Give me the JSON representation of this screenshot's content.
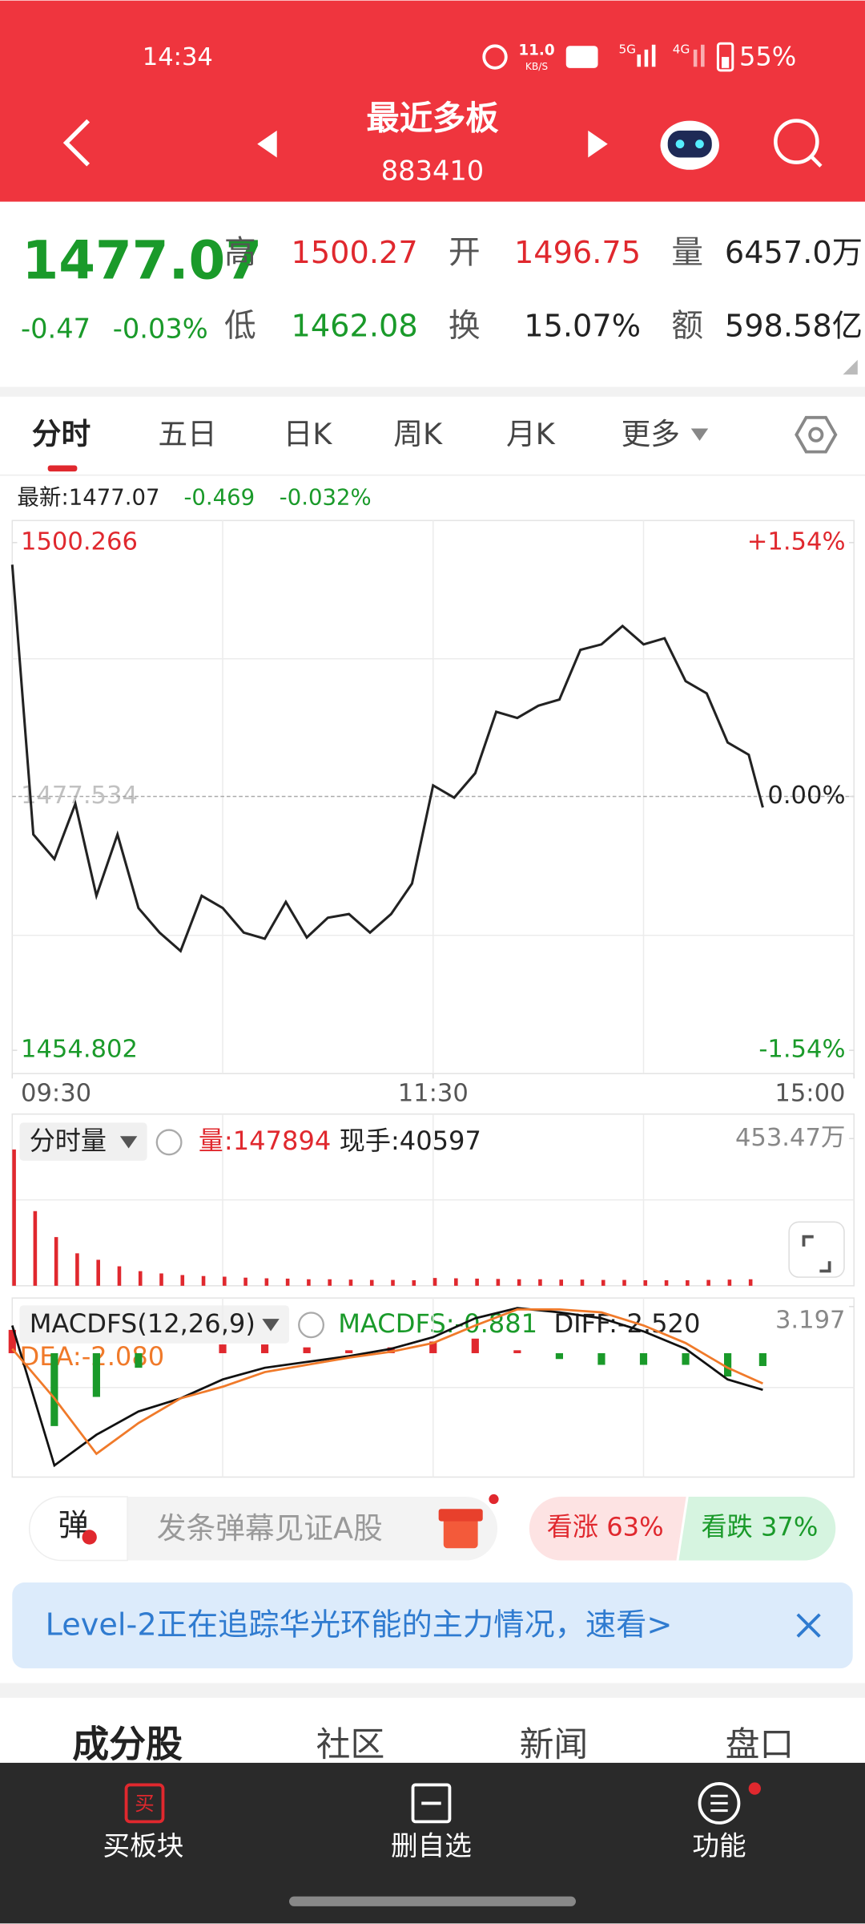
{
  "status_bar": {
    "time": "14:34",
    "net_speed": "11.0",
    "net_unit": "KB/S",
    "network": "5G",
    "network2": "4G",
    "battery": "55%"
  },
  "header": {
    "title": "最近多板",
    "code": "883410"
  },
  "quote": {
    "price": "1477.07",
    "change": "-0.47",
    "change_pct": "-0.03%",
    "stats": [
      {
        "label": "高",
        "value": "1500.27"
      },
      {
        "label": "开",
        "value": "1496.75"
      },
      {
        "label": "量",
        "value": "6457.0万"
      },
      {
        "label": "低",
        "value": "1462.08"
      },
      {
        "label": "换",
        "value": "15.07%"
      },
      {
        "label": "额",
        "value": "598.58亿"
      }
    ]
  },
  "tabs": [
    "分时",
    "五日",
    "日K",
    "周K",
    "月K",
    "更多"
  ],
  "intraday_info": {
    "latest": "最新:1477.07",
    "change": "-0.469",
    "change_pct": "-0.032%"
  },
  "volume_info": {
    "selector": "分时量",
    "volume": "量:147894",
    "hand": "现手:40597"
  },
  "macd_info": {
    "selector": "MACDFS(12,26,9)",
    "macd": "MACDFS:-0.881",
    "diff": "DIFF:-2.520",
    "dea": "DEA:-2.080"
  },
  "comment_bar": {
    "button": "弹",
    "placeholder": "发条弹幕见证A股",
    "bull": "看涨 63%",
    "bear": "看跌 37%"
  },
  "banner": {
    "text": "Level-2正在追踪华光环能的主力情况，速看>"
  },
  "section_tabs": [
    "成分股",
    "社区",
    "新闻",
    "盘口"
  ],
  "bottom_nav": [
    "买板块",
    "删自选",
    "功能"
  ],
  "chart_data": [
    {
      "type": "line",
      "x": [
        0,
        6,
        12,
        18,
        24,
        30,
        36,
        42,
        48,
        54,
        60,
        66,
        72,
        78,
        84,
        90,
        96,
        102,
        108,
        114,
        120,
        126,
        132,
        138,
        144,
        150,
        156,
        162,
        168,
        174,
        180,
        186,
        192,
        198,
        204,
        210,
        214
      ],
      "series": [
        {
          "color": "#222222",
          "values": [
            1498.29,
            1474.13,
            1471.93,
            1476.88,
            1468.64,
            1474.13,
            1467.54,
            1465.34,
            1463.7,
            1468.64,
            1467.54,
            1465.34,
            1464.79,
            1468.09,
            1464.9,
            1466.67,
            1467,
            1465.34,
            1467,
            1469.74,
            1478.52,
            1477.42,
            1479.62,
            1485.11,
            1484.56,
            1485.66,
            1486.21,
            1490.66,
            1491.15,
            1492.8,
            1491.15,
            1491.7,
            1487.86,
            1486.76,
            1482.37,
            1481.27,
            1476.55
          ]
        }
      ],
      "xlim": [
        0,
        240
      ],
      "xticks": [
        {
          "value": 0,
          "label": "09:30"
        },
        {
          "value": 120,
          "label": "11:30"
        },
        {
          "value": 240,
          "label": "15:00"
        }
      ],
      "ylim": [
        1454.802,
        1500.266
      ],
      "yticks": [
        1454.802,
        1477.534,
        1500.266
      ],
      "y2lim": [
        -1.54,
        1.54
      ],
      "y2ticks": [
        {
          "value": -1.54,
          "label": "-1.54%"
        },
        {
          "value": 0,
          "label": "0.00%"
        },
        {
          "value": 1.54,
          "label": "+1.54%"
        }
      ]
    },
    {
      "type": "bar",
      "x": [
        0,
        6,
        12,
        18,
        24,
        30,
        36,
        42,
        48,
        54,
        60,
        66,
        72,
        78,
        84,
        90,
        96,
        102,
        108,
        114,
        120,
        126,
        132,
        138,
        144,
        150,
        156,
        162,
        168,
        174,
        180,
        186,
        192,
        198,
        204,
        210
      ],
      "series": [
        {
          "color": "#e0282e",
          "values": [
            4200000,
            2300000,
            1500000,
            1000000,
            800000,
            600000,
            450000,
            380000,
            330000,
            300000,
            280000,
            250000,
            230000,
            220000,
            200000,
            200000,
            190000,
            180000,
            180000,
            170000,
            240000,
            230000,
            220000,
            210000,
            200000,
            200000,
            190000,
            190000,
            180000,
            180000,
            170000,
            170000,
            170000,
            180000,
            190000,
            200000
          ]
        }
      ],
      "xlim": [
        0,
        240
      ],
      "ylim": [
        0,
        4534700
      ],
      "yticks": [
        {
          "value": 4534700,
          "label": "453.47万"
        }
      ]
    },
    {
      "type": "macd",
      "x": [
        0,
        12,
        24,
        36,
        48,
        60,
        72,
        84,
        96,
        108,
        120,
        132,
        144,
        156,
        168,
        180,
        192,
        204,
        214
      ],
      "histogram": {
        "up_color": "#e0282e",
        "down_color": "#1a9a2a",
        "values": [
          1.6,
          -5.0,
          -3.0,
          -1.0,
          0,
          0.6,
          0.6,
          0.4,
          0.2,
          0.4,
          0.8,
          1.0,
          0.2,
          -0.4,
          -0.8,
          -0.8,
          -0.8,
          -1.6,
          -0.881
        ]
      },
      "diff": {
        "color": "#111111",
        "values": [
          1.9,
          -7.7,
          -5.6,
          -4.0,
          -3.1,
          -1.8,
          -1.0,
          -0.6,
          -0.2,
          0.3,
          1.1,
          2.4,
          3.1,
          2.8,
          2.4,
          1.5,
          0.3,
          -1.8,
          -2.52
        ]
      },
      "dea": {
        "color": "#f07a2a",
        "values": [
          0.3,
          -3.1,
          -6.9,
          -4.8,
          -3.1,
          -2.3,
          -1.3,
          -0.8,
          -0.3,
          0.1,
          0.7,
          1.9,
          3.0,
          3.0,
          2.8,
          1.9,
          0.7,
          -1.0,
          -2.08
        ]
      },
      "xlim": [
        0,
        240
      ],
      "ylim": [
        -8.5,
        3.197
      ],
      "yticks": [
        3.197
      ]
    }
  ]
}
